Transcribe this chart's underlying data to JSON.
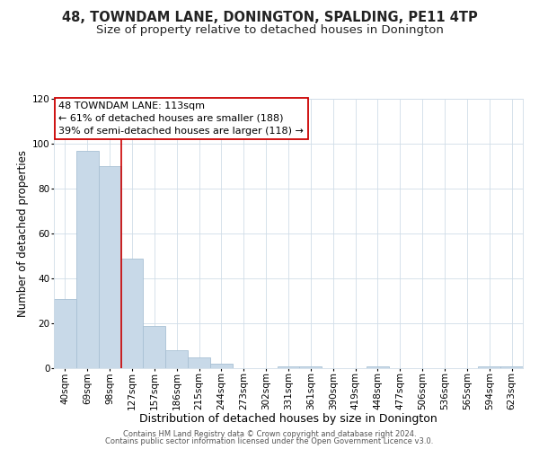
{
  "title": "48, TOWNDAM LANE, DONINGTON, SPALDING, PE11 4TP",
  "subtitle": "Size of property relative to detached houses in Donington",
  "xlabel": "Distribution of detached houses by size in Donington",
  "ylabel": "Number of detached properties",
  "bar_labels": [
    "40sqm",
    "69sqm",
    "98sqm",
    "127sqm",
    "157sqm",
    "186sqm",
    "215sqm",
    "244sqm",
    "273sqm",
    "302sqm",
    "331sqm",
    "361sqm",
    "390sqm",
    "419sqm",
    "448sqm",
    "477sqm",
    "506sqm",
    "536sqm",
    "565sqm",
    "594sqm",
    "623sqm"
  ],
  "bar_values": [
    31,
    97,
    90,
    49,
    19,
    8,
    5,
    2,
    0,
    0,
    1,
    1,
    0,
    0,
    1,
    0,
    0,
    0,
    0,
    1,
    1
  ],
  "bar_color": "#c8d9e8",
  "bar_edge_color": "#a8c0d4",
  "vline_x": 2.5,
  "vline_color": "#cc0000",
  "annotation_line1": "48 TOWNDAM LANE: 113sqm",
  "annotation_line2": "← 61% of detached houses are smaller (188)",
  "annotation_line3": "39% of semi-detached houses are larger (118) →",
  "annotation_box_facecolor": "#ffffff",
  "annotation_box_edgecolor": "#cc0000",
  "ylim": [
    0,
    120
  ],
  "yticks": [
    0,
    20,
    40,
    60,
    80,
    100,
    120
  ],
  "title_fontsize": 10.5,
  "subtitle_fontsize": 9.5,
  "xlabel_fontsize": 9,
  "ylabel_fontsize": 8.5,
  "tick_fontsize": 7.5,
  "annot_fontsize": 8,
  "footer_line1": "Contains HM Land Registry data © Crown copyright and database right 2024.",
  "footer_line2": "Contains public sector information licensed under the Open Government Licence v3.0.",
  "background_color": "#ffffff",
  "grid_color": "#d0dde8"
}
